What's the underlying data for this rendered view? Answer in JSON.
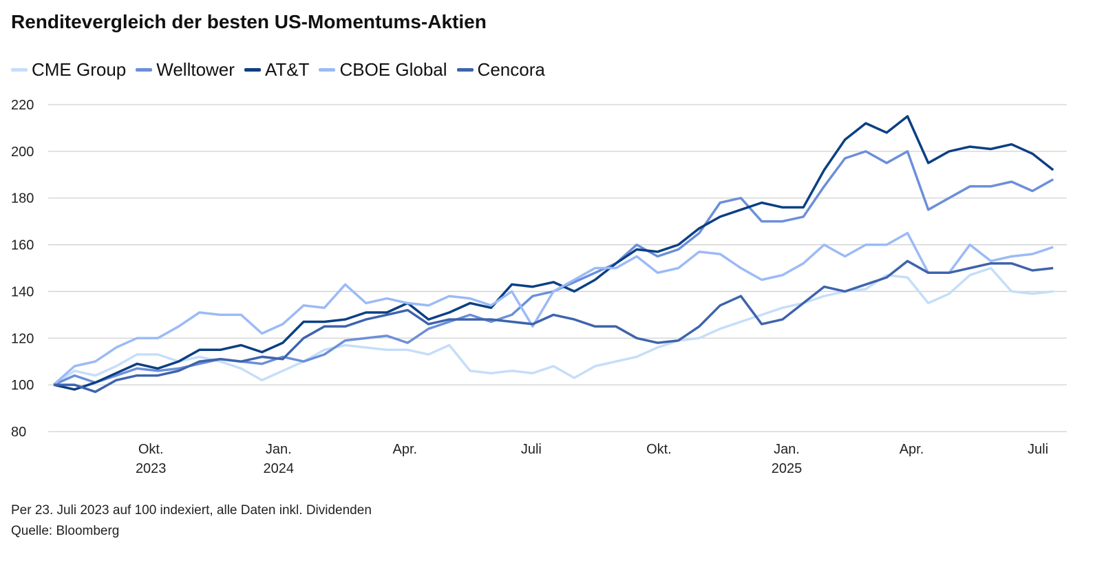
{
  "chart_data": {
    "type": "line",
    "title": "Renditevergleich der besten US-Momentums-Aktien",
    "xlabel": "",
    "ylabel": "",
    "ylim": [
      80,
      220
    ],
    "yticks": [
      80,
      100,
      120,
      140,
      160,
      180,
      200,
      220
    ],
    "grid": true,
    "legend_position": "top-left",
    "x_start_date": "2023-07-23",
    "x_interval_days": 15,
    "xticks": [
      {
        "day": 70,
        "label": "Okt.",
        "year": "2023"
      },
      {
        "day": 162,
        "label": "Jan.",
        "year": "2024"
      },
      {
        "day": 253,
        "label": "Apr.",
        "year": ""
      },
      {
        "day": 344,
        "label": "Juli",
        "year": ""
      },
      {
        "day": 436,
        "label": "Okt.",
        "year": ""
      },
      {
        "day": 528,
        "label": "Jan.",
        "year": "2025"
      },
      {
        "day": 618,
        "label": "Apr.",
        "year": ""
      },
      {
        "day": 709,
        "label": "Juli",
        "year": ""
      }
    ],
    "series": [
      {
        "name": "CME Group",
        "color": "#c5def9",
        "values": [
          100,
          106,
          104,
          108,
          113,
          113,
          110,
          112,
          110,
          107,
          102,
          106,
          110,
          115,
          117,
          116,
          115,
          115,
          113,
          117,
          106,
          105,
          106,
          105,
          108,
          103,
          108,
          110,
          112,
          116,
          119,
          120,
          124,
          127,
          130,
          133,
          135,
          138,
          140,
          141,
          147,
          146,
          135,
          139,
          147,
          150,
          140,
          139,
          140
        ]
      },
      {
        "name": "Welltower",
        "color": "#6b8fd9",
        "values": [
          100,
          104,
          101,
          104,
          107,
          106,
          107,
          109,
          111,
          110,
          109,
          112,
          110,
          113,
          119,
          120,
          121,
          118,
          124,
          127,
          130,
          127,
          130,
          138,
          140,
          144,
          148,
          152,
          160,
          155,
          158,
          165,
          178,
          180,
          170,
          170,
          172,
          185,
          197,
          200,
          195,
          200,
          175,
          180,
          185,
          185,
          187,
          183,
          188
        ]
      },
      {
        "name": "AT&T",
        "color": "#0b3f83",
        "values": [
          100,
          98,
          101,
          105,
          109,
          107,
          110,
          115,
          115,
          117,
          114,
          118,
          127,
          127,
          128,
          131,
          131,
          135,
          128,
          131,
          135,
          133,
          143,
          142,
          144,
          140,
          145,
          152,
          158,
          157,
          160,
          167,
          172,
          175,
          178,
          176,
          176,
          192,
          205,
          212,
          208,
          215,
          195,
          200,
          202,
          201,
          203,
          199,
          192
        ]
      },
      {
        "name": "CBOE Global",
        "color": "#9bbaf6",
        "values": [
          100,
          108,
          110,
          116,
          120,
          120,
          125,
          131,
          130,
          130,
          122,
          126,
          134,
          133,
          143,
          135,
          137,
          135,
          134,
          138,
          137,
          134,
          140,
          125,
          140,
          145,
          150,
          150,
          155,
          148,
          150,
          157,
          156,
          150,
          145,
          147,
          152,
          160,
          155,
          160,
          160,
          165,
          148,
          148,
          160,
          153,
          155,
          156,
          159
        ]
      },
      {
        "name": "Cencora",
        "color": "#3e63ad",
        "values": [
          100,
          100,
          97,
          102,
          104,
          104,
          106,
          110,
          111,
          110,
          112,
          111,
          120,
          125,
          125,
          128,
          130,
          132,
          126,
          128,
          128,
          128,
          127,
          126,
          130,
          128,
          125,
          125,
          120,
          118,
          119,
          125,
          134,
          138,
          126,
          128,
          135,
          142,
          140,
          143,
          146,
          153,
          148,
          148,
          150,
          152,
          152,
          149,
          150
        ]
      }
    ]
  },
  "footer": {
    "note": "Per 23. Juli 2023 auf 100 indexiert, alle Daten inkl. Dividenden",
    "source": "Quelle: Bloomberg"
  }
}
